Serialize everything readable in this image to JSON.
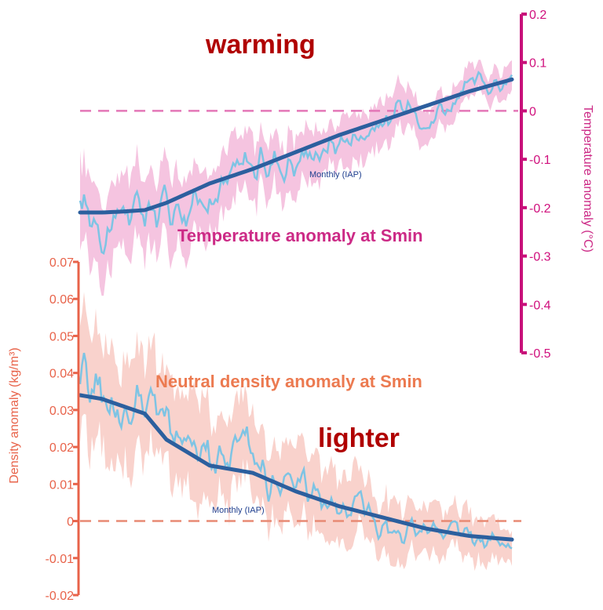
{
  "chart_data": [
    {
      "type": "line",
      "title": "",
      "annotation": "Temperature anomaly at Smin",
      "headline": "warming",
      "ylabel": "Temperature anomaly (°C)",
      "ylim": [
        -0.5,
        0.2
      ],
      "yticks": [
        "0.2",
        "0.1",
        "0",
        "-0.1",
        "-0.2",
        "-0.3",
        "-0.4",
        "-0.5"
      ],
      "reference_line": 0,
      "series_label": "Monthly (IAP)",
      "x": [
        0,
        0.05,
        0.1,
        0.15,
        0.2,
        0.3,
        0.4,
        0.5,
        0.6,
        0.7,
        0.8,
        0.9,
        1.0
      ],
      "trend": [
        -0.21,
        -0.21,
        -0.208,
        -0.205,
        -0.19,
        -0.15,
        -0.12,
        -0.085,
        -0.05,
        -0.02,
        0.01,
        0.04,
        0.065
      ],
      "colors": {
        "axis": "#c8107a",
        "trend": "#2c5f9e",
        "monthly": "#7ec4e4",
        "band": "#f5c4e0",
        "zero": "#e477b7"
      }
    },
    {
      "type": "line",
      "title": "",
      "annotation": "Neutral density anomaly at Smin",
      "headline": "lighter",
      "ylabel": "Density anomaly (kg/m³)",
      "ylim": [
        -0.02,
        0.07
      ],
      "yticks": [
        "0.07",
        "0.06",
        "0.05",
        "0.04",
        "0.03",
        "0.02",
        "0.01",
        "0",
        "-0.01",
        "-0.02"
      ],
      "reference_line": 0,
      "series_label": "Monthly (IAP)",
      "x": [
        0,
        0.05,
        0.1,
        0.15,
        0.2,
        0.3,
        0.4,
        0.5,
        0.6,
        0.7,
        0.8,
        0.9,
        1.0
      ],
      "trend": [
        0.034,
        0.033,
        0.031,
        0.029,
        0.022,
        0.015,
        0.013,
        0.008,
        0.004,
        0.001,
        -0.002,
        -0.004,
        -0.005
      ],
      "colors": {
        "axis": "#e8634a",
        "trend": "#2c5f9e",
        "monthly": "#7ec4e4",
        "band": "#f9d2cc",
        "zero": "#e88a74"
      }
    }
  ]
}
